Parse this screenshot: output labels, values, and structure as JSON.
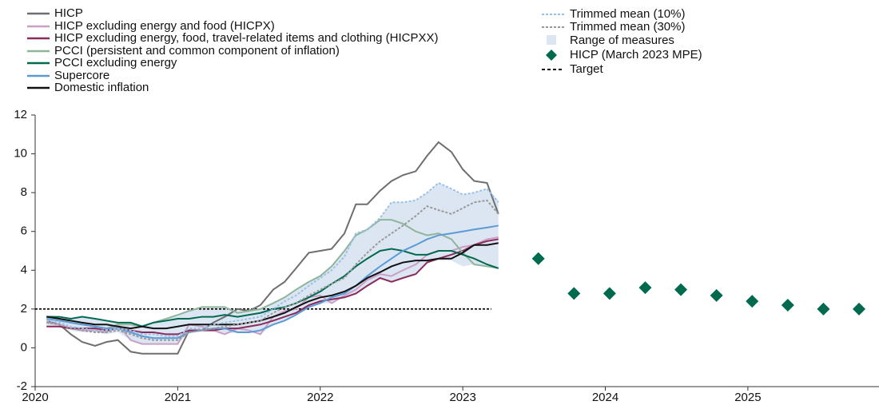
{
  "chart_data": {
    "type": "line",
    "x": [
      2020.08,
      2020.17,
      2020.25,
      2020.33,
      2020.42,
      2020.5,
      2020.58,
      2020.67,
      2020.75,
      2020.83,
      2020.92,
      2021.0,
      2021.08,
      2021.17,
      2021.25,
      2021.33,
      2021.42,
      2021.5,
      2021.58,
      2021.67,
      2021.75,
      2021.83,
      2021.92,
      2022.0,
      2022.08,
      2022.17,
      2022.25,
      2022.33,
      2022.42,
      2022.5,
      2022.58,
      2022.67,
      2022.75,
      2022.83,
      2022.92,
      2023.0,
      2023.08,
      2023.17,
      2023.25
    ],
    "series": [
      {
        "name": "HICP",
        "color": "#6d6e71",
        "values": [
          1.4,
          1.2,
          0.7,
          0.3,
          0.1,
          0.3,
          0.4,
          -0.2,
          -0.3,
          -0.3,
          -0.3,
          -0.3,
          0.9,
          0.9,
          1.3,
          1.6,
          2.0,
          1.9,
          2.2,
          3.0,
          3.4,
          4.1,
          4.9,
          5.0,
          5.1,
          5.9,
          7.4,
          7.4,
          8.1,
          8.6,
          8.9,
          9.1,
          9.9,
          10.6,
          10.1,
          9.2,
          8.6,
          8.5,
          6.9
        ]
      },
      {
        "name": "HICP excluding energy and food (HICPX)",
        "color": "#c9a0c5",
        "values": [
          1.3,
          1.2,
          1.0,
          0.9,
          0.9,
          0.8,
          1.2,
          0.4,
          0.2,
          0.2,
          0.2,
          0.2,
          1.2,
          1.1,
          0.9,
          0.7,
          1.0,
          0.9,
          0.7,
          1.6,
          1.9,
          2.0,
          2.6,
          2.7,
          2.3,
          2.7,
          3.0,
          3.5,
          3.8,
          3.7,
          4.0,
          4.3,
          4.8,
          5.0,
          5.0,
          5.2,
          5.3,
          5.6,
          5.7
        ]
      },
      {
        "name": "HICP excluding energy, food, travel-related items and clothing (HICPXX)",
        "color": "#8b2a5b",
        "values": [
          1.1,
          1.1,
          1.0,
          1.0,
          1.0,
          0.9,
          1.0,
          0.9,
          0.8,
          0.8,
          0.7,
          0.7,
          0.9,
          0.9,
          0.9,
          1.0,
          1.0,
          1.1,
          1.2,
          1.4,
          1.6,
          1.8,
          2.2,
          2.4,
          2.5,
          2.6,
          2.8,
          3.2,
          3.6,
          3.4,
          3.6,
          3.8,
          4.4,
          4.6,
          4.8,
          5.0,
          5.3,
          5.5,
          5.6
        ]
      },
      {
        "name": "PCCI (persistent and common component of inflation)",
        "color": "#8fb59a",
        "values": [
          1.6,
          1.5,
          1.3,
          1.2,
          1.1,
          1.0,
          1.2,
          1.2,
          1.1,
          1.3,
          1.5,
          1.7,
          1.9,
          2.1,
          2.1,
          2.1,
          1.8,
          1.9,
          2.0,
          2.3,
          2.6,
          3.0,
          3.4,
          3.7,
          4.2,
          5.0,
          5.8,
          6.1,
          6.6,
          6.6,
          6.4,
          6.0,
          5.8,
          5.9,
          5.6,
          4.9,
          4.3,
          4.2,
          4.1
        ]
      },
      {
        "name": "PCCI excluding energy",
        "color": "#006a4e",
        "values": [
          1.6,
          1.6,
          1.5,
          1.6,
          1.5,
          1.4,
          1.3,
          1.3,
          1.1,
          1.3,
          1.4,
          1.5,
          1.5,
          1.6,
          1.6,
          1.7,
          1.6,
          1.7,
          1.8,
          2.0,
          2.1,
          2.3,
          2.6,
          2.9,
          3.3,
          3.7,
          4.2,
          4.6,
          5.0,
          5.1,
          5.0,
          4.8,
          4.8,
          5.0,
          5.0,
          4.8,
          4.6,
          4.3,
          4.1
        ]
      },
      {
        "name": "Supercore",
        "color": "#5b9bd5",
        "values": [
          1.5,
          1.4,
          1.3,
          1.2,
          1.1,
          1.0,
          1.0,
          0.8,
          0.6,
          0.5,
          0.5,
          0.5,
          0.8,
          0.9,
          1.0,
          1.0,
          0.8,
          0.8,
          0.9,
          1.2,
          1.4,
          1.7,
          2.1,
          2.3,
          2.6,
          2.8,
          3.2,
          3.7,
          4.2,
          4.6,
          5.0,
          5.3,
          5.6,
          5.8,
          5.9,
          6.0,
          6.1,
          6.2,
          6.3
        ]
      },
      {
        "name": "Domestic inflation",
        "color": "#111111",
        "values": [
          1.6,
          1.5,
          1.4,
          1.3,
          1.2,
          1.2,
          1.1,
          1.0,
          1.1,
          1.0,
          1.0,
          1.1,
          1.2,
          1.2,
          1.2,
          1.2,
          1.2,
          1.3,
          1.4,
          1.6,
          1.8,
          2.1,
          2.4,
          2.6,
          2.7,
          2.9,
          3.2,
          3.6,
          3.9,
          4.2,
          4.4,
          4.5,
          4.5,
          4.6,
          4.6,
          4.9,
          5.3,
          5.3,
          5.4
        ]
      },
      {
        "name": "Trimmed mean (10%)",
        "color": "#9cc1e6",
        "dash": true,
        "values": [
          1.4,
          1.3,
          1.1,
          1.0,
          0.9,
          0.9,
          1.0,
          0.9,
          0.7,
          0.7,
          0.6,
          0.6,
          1.0,
          1.0,
          1.2,
          1.3,
          1.4,
          1.5,
          1.6,
          2.0,
          2.4,
          2.7,
          3.2,
          3.6,
          4.0,
          4.7,
          5.9,
          6.1,
          6.7,
          7.5,
          7.5,
          7.6,
          8.0,
          8.5,
          8.2,
          7.9,
          8.0,
          8.2,
          7.5
        ]
      },
      {
        "name": "Trimmed mean (30%)",
        "color": "#999999",
        "dash": true,
        "values": [
          1.3,
          1.2,
          1.0,
          0.9,
          0.8,
          0.8,
          0.9,
          0.7,
          0.5,
          0.4,
          0.4,
          0.4,
          0.8,
          0.9,
          1.0,
          1.1,
          1.2,
          1.3,
          1.4,
          1.8,
          2.1,
          2.3,
          2.7,
          3.0,
          3.3,
          3.6,
          4.3,
          4.9,
          5.5,
          5.9,
          6.3,
          6.8,
          7.3,
          7.1,
          6.9,
          7.2,
          7.5,
          7.6,
          6.9
        ]
      }
    ],
    "range": {
      "name": "Range of measures",
      "color": "#dce6f2",
      "low": [
        1.1,
        1.1,
        0.9,
        0.8,
        0.8,
        0.7,
        0.8,
        0.4,
        0.2,
        0.2,
        0.2,
        0.2,
        0.8,
        0.9,
        0.9,
        0.7,
        0.8,
        0.8,
        0.7,
        1.2,
        1.4,
        1.7,
        2.1,
        2.3,
        2.3,
        2.6,
        2.8,
        3.2,
        3.6,
        3.4,
        3.6,
        3.8,
        4.4,
        4.5,
        4.5,
        4.2,
        4.3,
        4.2,
        4.1
      ],
      "high": [
        1.7,
        1.6,
        1.5,
        1.6,
        1.5,
        1.4,
        1.3,
        1.3,
        1.2,
        1.3,
        1.5,
        1.7,
        2.0,
        2.1,
        2.1,
        2.1,
        1.9,
        1.9,
        2.0,
        2.3,
        2.6,
        3.0,
        3.4,
        3.7,
        4.2,
        5.0,
        5.9,
        6.1,
        6.7,
        7.5,
        7.5,
        7.6,
        8.0,
        8.5,
        8.2,
        7.9,
        8.0,
        8.2,
        7.6
      ]
    },
    "projection": {
      "name": "HICP (March 2023 MPE)",
      "color": "#006a4e",
      "x": [
        2023.53,
        2023.78,
        2024.03,
        2024.28,
        2024.53,
        2024.78,
        2025.03,
        2025.28,
        2025.53,
        2025.78
      ],
      "values": [
        4.6,
        2.8,
        2.8,
        3.1,
        3.0,
        2.7,
        2.4,
        2.2,
        2.0,
        2.0
      ]
    },
    "target": {
      "name": "Target",
      "color": "#000000",
      "dash": true,
      "x": [
        2020,
        2023.2
      ],
      "values": [
        2,
        2
      ]
    },
    "xlim": [
      2020,
      2025.92
    ],
    "xticks": [
      2020,
      2021,
      2022,
      2023,
      2024,
      2025
    ],
    "ylim": [
      -2,
      12
    ],
    "yticks": [
      -2,
      0,
      2,
      4,
      6,
      8,
      10,
      12
    ]
  }
}
